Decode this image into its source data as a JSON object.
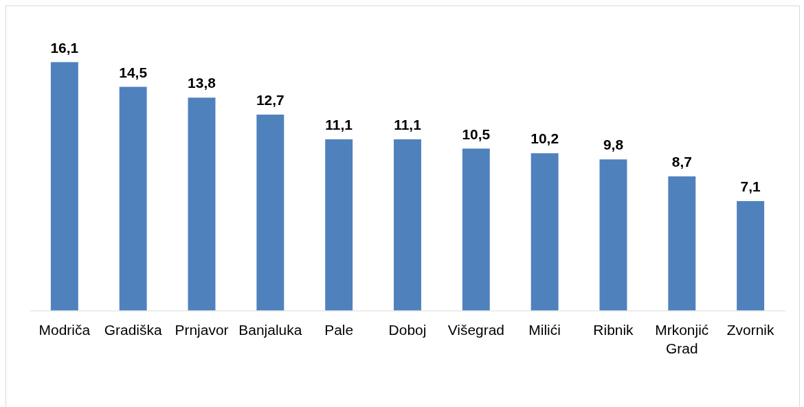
{
  "chart_data": {
    "type": "bar",
    "categories": [
      "Modriča",
      "Gradiška",
      "Prnjavor",
      "Banjaluka",
      "Pale",
      "Doboj",
      "Višegrad",
      "Milići",
      "Ribnik",
      "Mrkonjić Grad",
      "Zvornik"
    ],
    "values": [
      16.1,
      14.5,
      13.8,
      12.7,
      11.1,
      11.1,
      10.5,
      10.2,
      9.8,
      8.7,
      7.1
    ],
    "color": "#4f81bd",
    "value_labels": [
      "16,1",
      "14,5",
      "13,8",
      "12,7",
      "11,1",
      "11,1",
      "10,5",
      "10,2",
      "9,8",
      "8,7",
      "7,1"
    ],
    "tick_labels": "x"
  }
}
